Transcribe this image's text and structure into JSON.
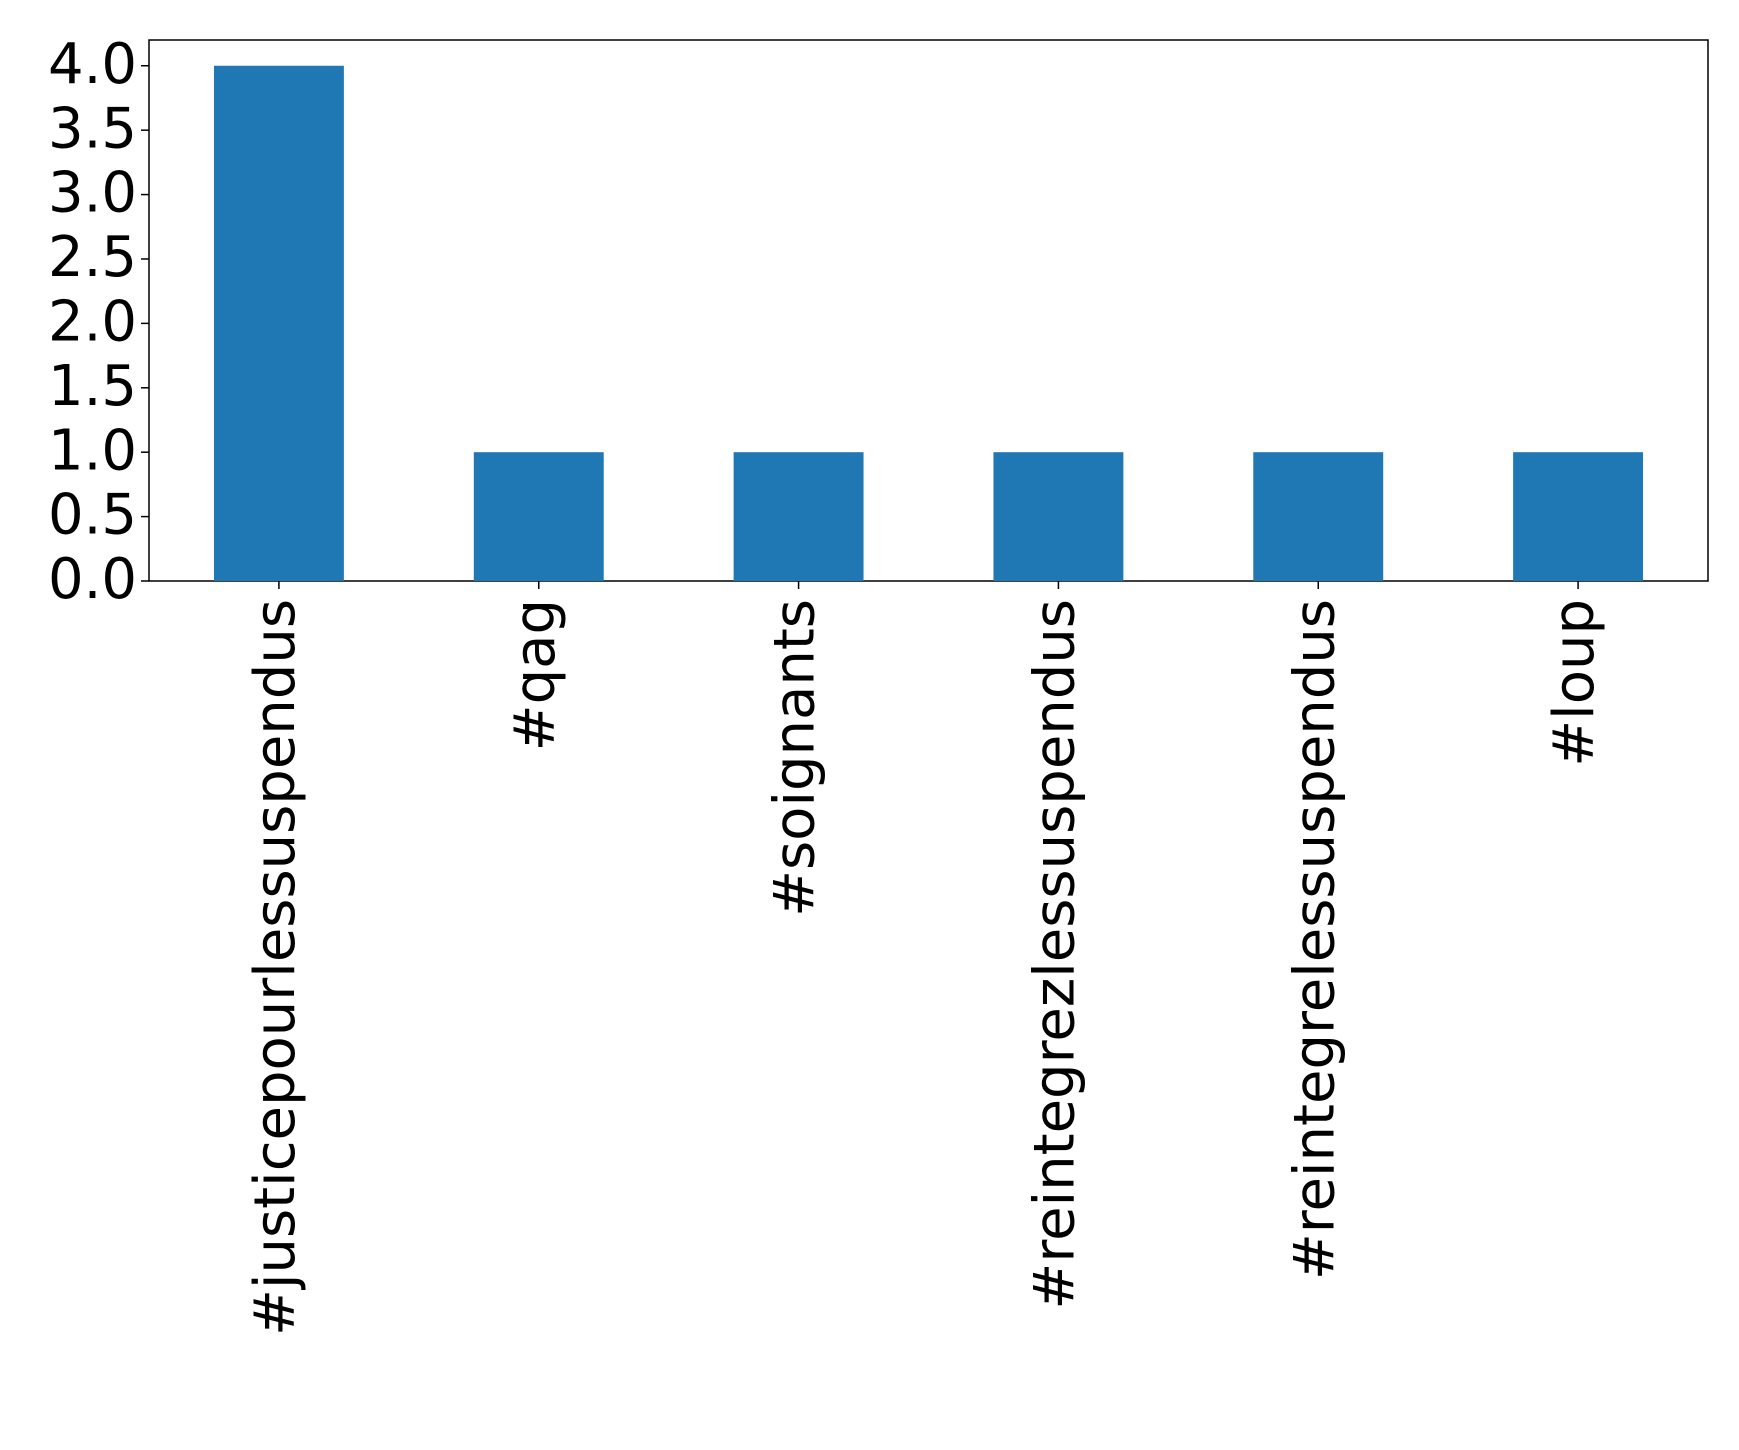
{
  "chart_data": {
    "type": "bar",
    "categories": [
      "#justicepourlessuspendus",
      "#qag",
      "#soignants",
      "#reintegrezlessuspendus",
      "#reintegrelessuspendus",
      "#loup"
    ],
    "values": [
      4,
      1,
      1,
      1,
      1,
      1
    ],
    "color": "#1f77b4",
    "ylim": [
      0,
      4.2
    ],
    "yticks": [
      {
        "value": 0,
        "label": "0.0"
      },
      {
        "value": 0.5,
        "label": "0.5"
      },
      {
        "value": 1,
        "label": "1.0"
      },
      {
        "value": 1.5,
        "label": "1.5"
      },
      {
        "value": 2,
        "label": "2.0"
      },
      {
        "value": 2.5,
        "label": "2.5"
      },
      {
        "value": 3,
        "label": "3.0"
      },
      {
        "value": 3.5,
        "label": "3.5"
      },
      {
        "value": 4,
        "label": "4.0"
      }
    ],
    "grid": false
  }
}
